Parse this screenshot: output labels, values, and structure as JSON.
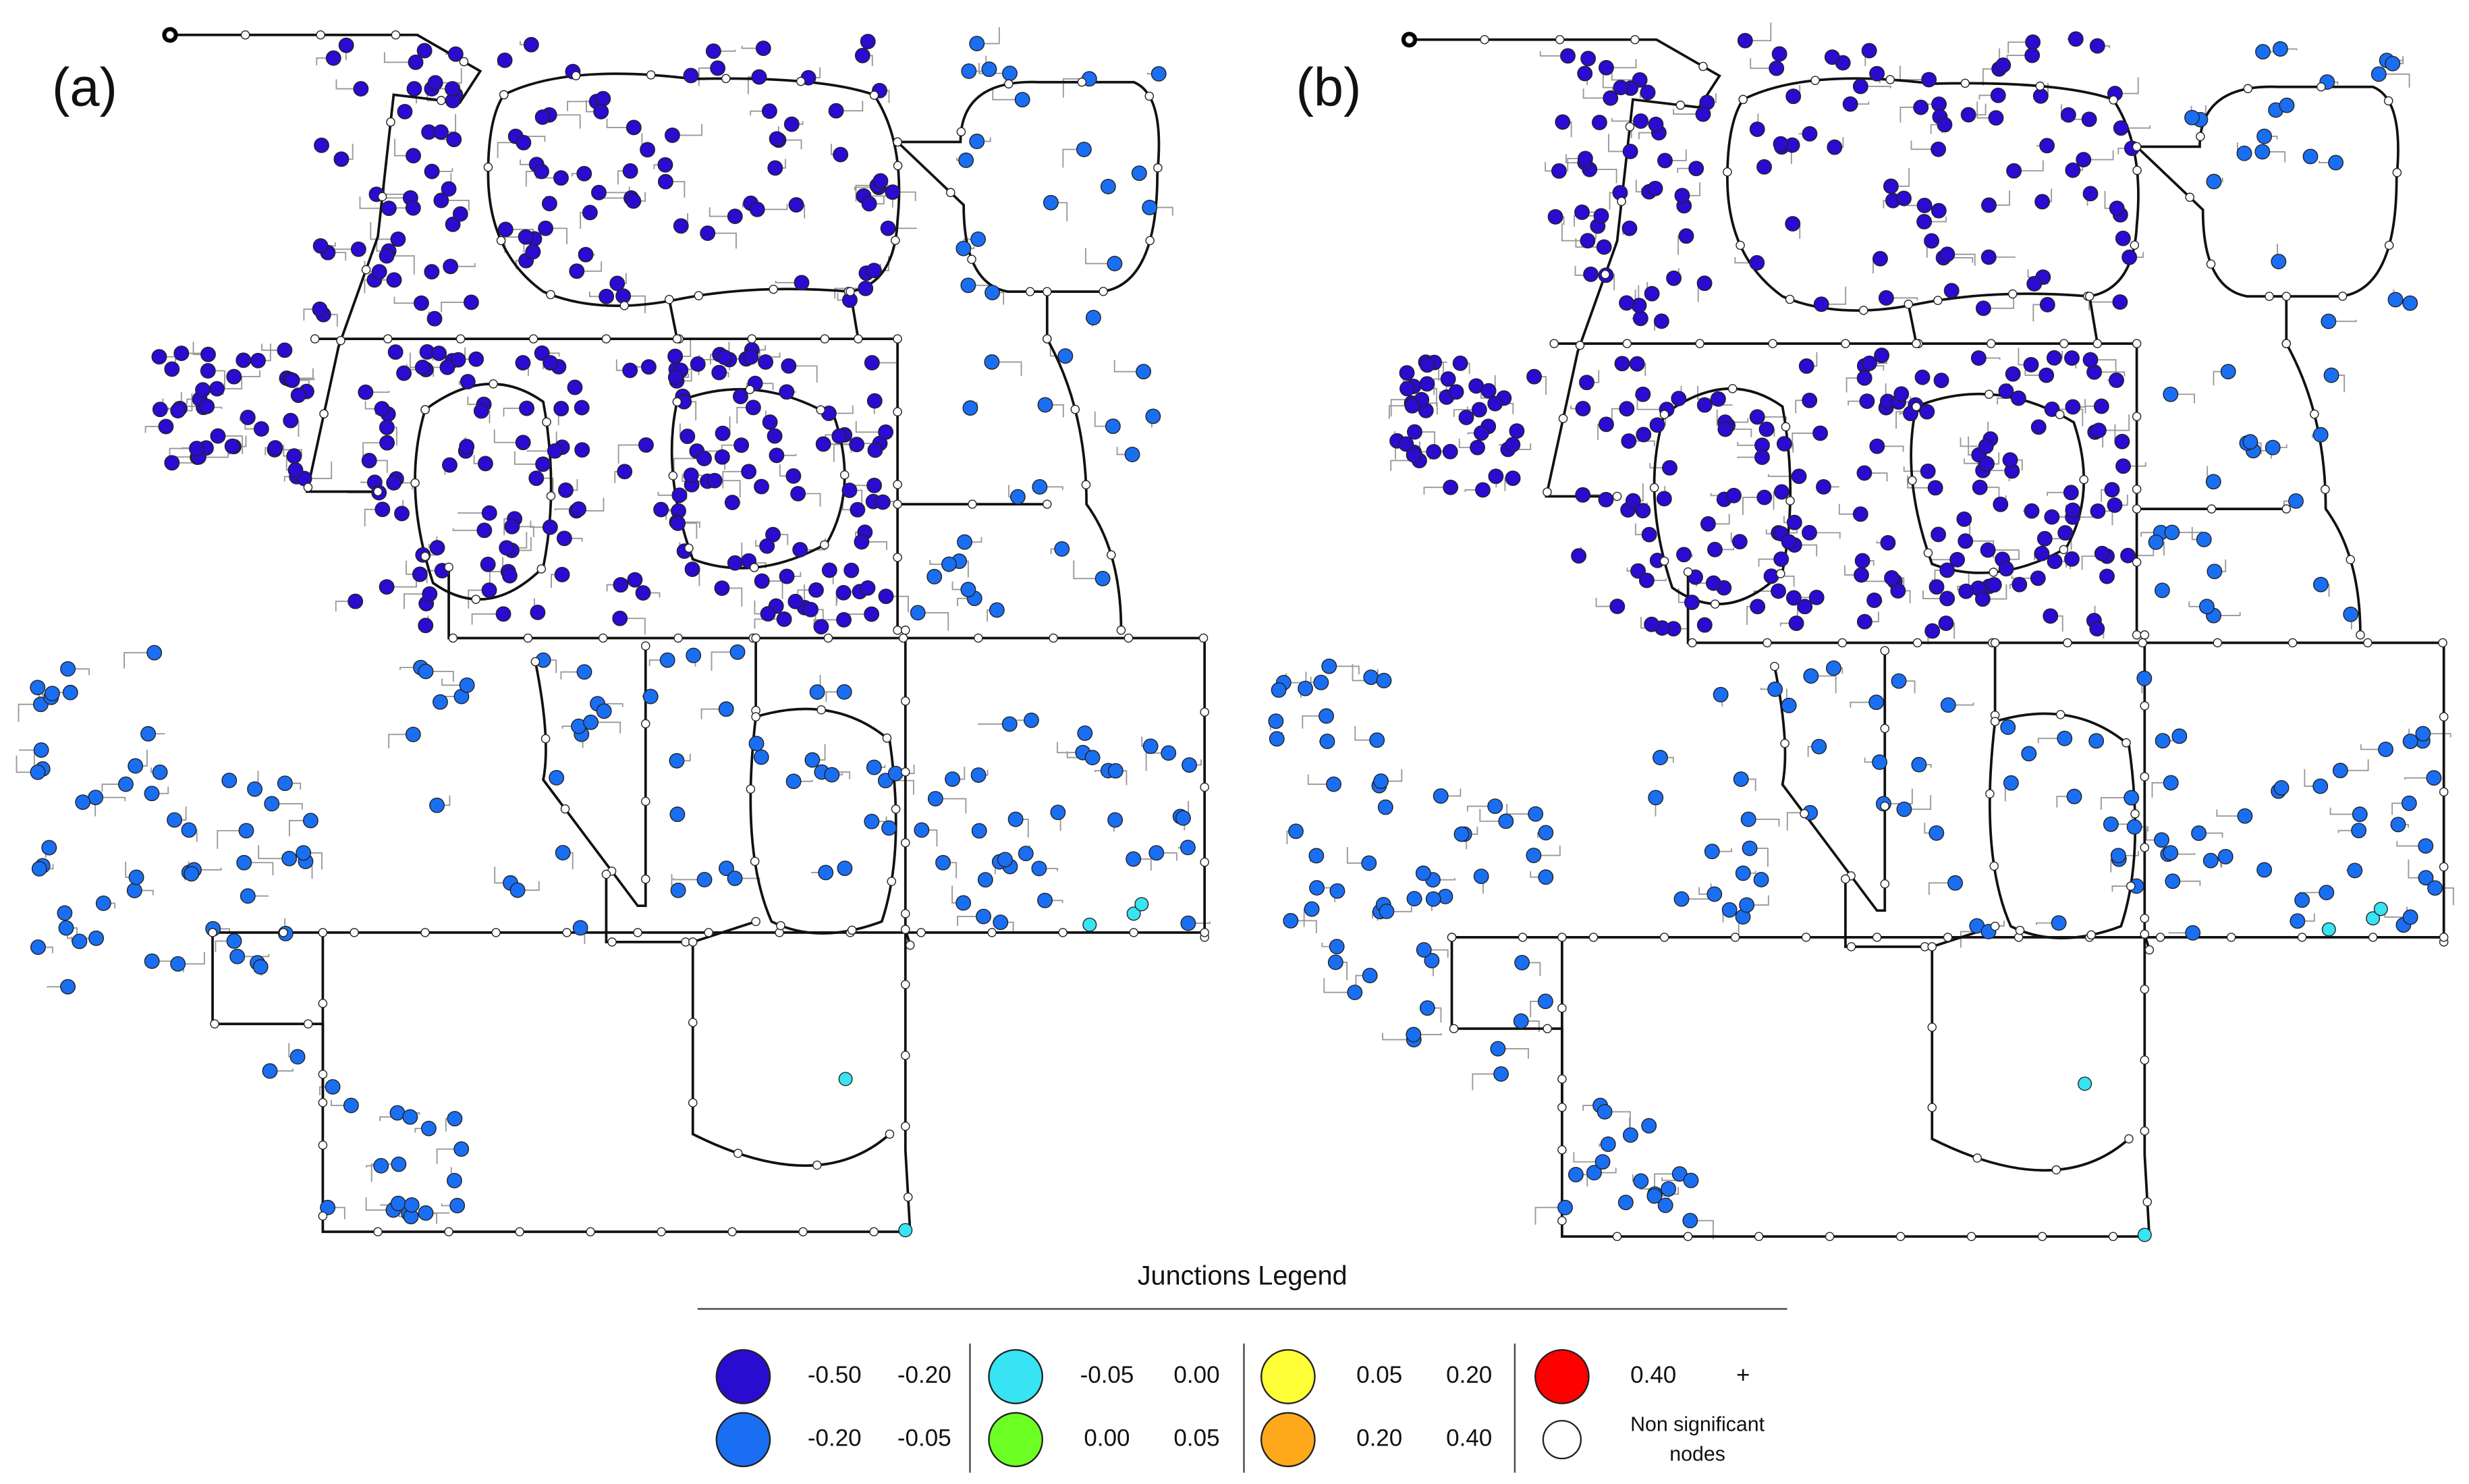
{
  "panels": [
    {
      "label": "(a)"
    },
    {
      "label": "(b)"
    }
  ],
  "legend": {
    "title": "Junctions Legend",
    "items": [
      {
        "color": "#2a0bd0",
        "from": "-0.50",
        "to": "-0.20"
      },
      {
        "color": "#1a6ef2",
        "from": "-0.20",
        "to": "-0.05"
      },
      {
        "color": "#38e4f4",
        "from": "-0.05",
        "to": "0.00"
      },
      {
        "color": "#6cff24",
        "from": "0.00",
        "to": "0.05"
      },
      {
        "color": "#ffff38",
        "from": "0.05",
        "to": "0.20"
      },
      {
        "color": "#ffa81c",
        "from": "0.20",
        "to": "0.40"
      },
      {
        "color": "#ff0000",
        "from": "0.40",
        "to": "+"
      }
    ],
    "non_significant": {
      "color": "#ffffff",
      "label_lines": [
        "Non significant",
        "nodes"
      ]
    }
  }
}
